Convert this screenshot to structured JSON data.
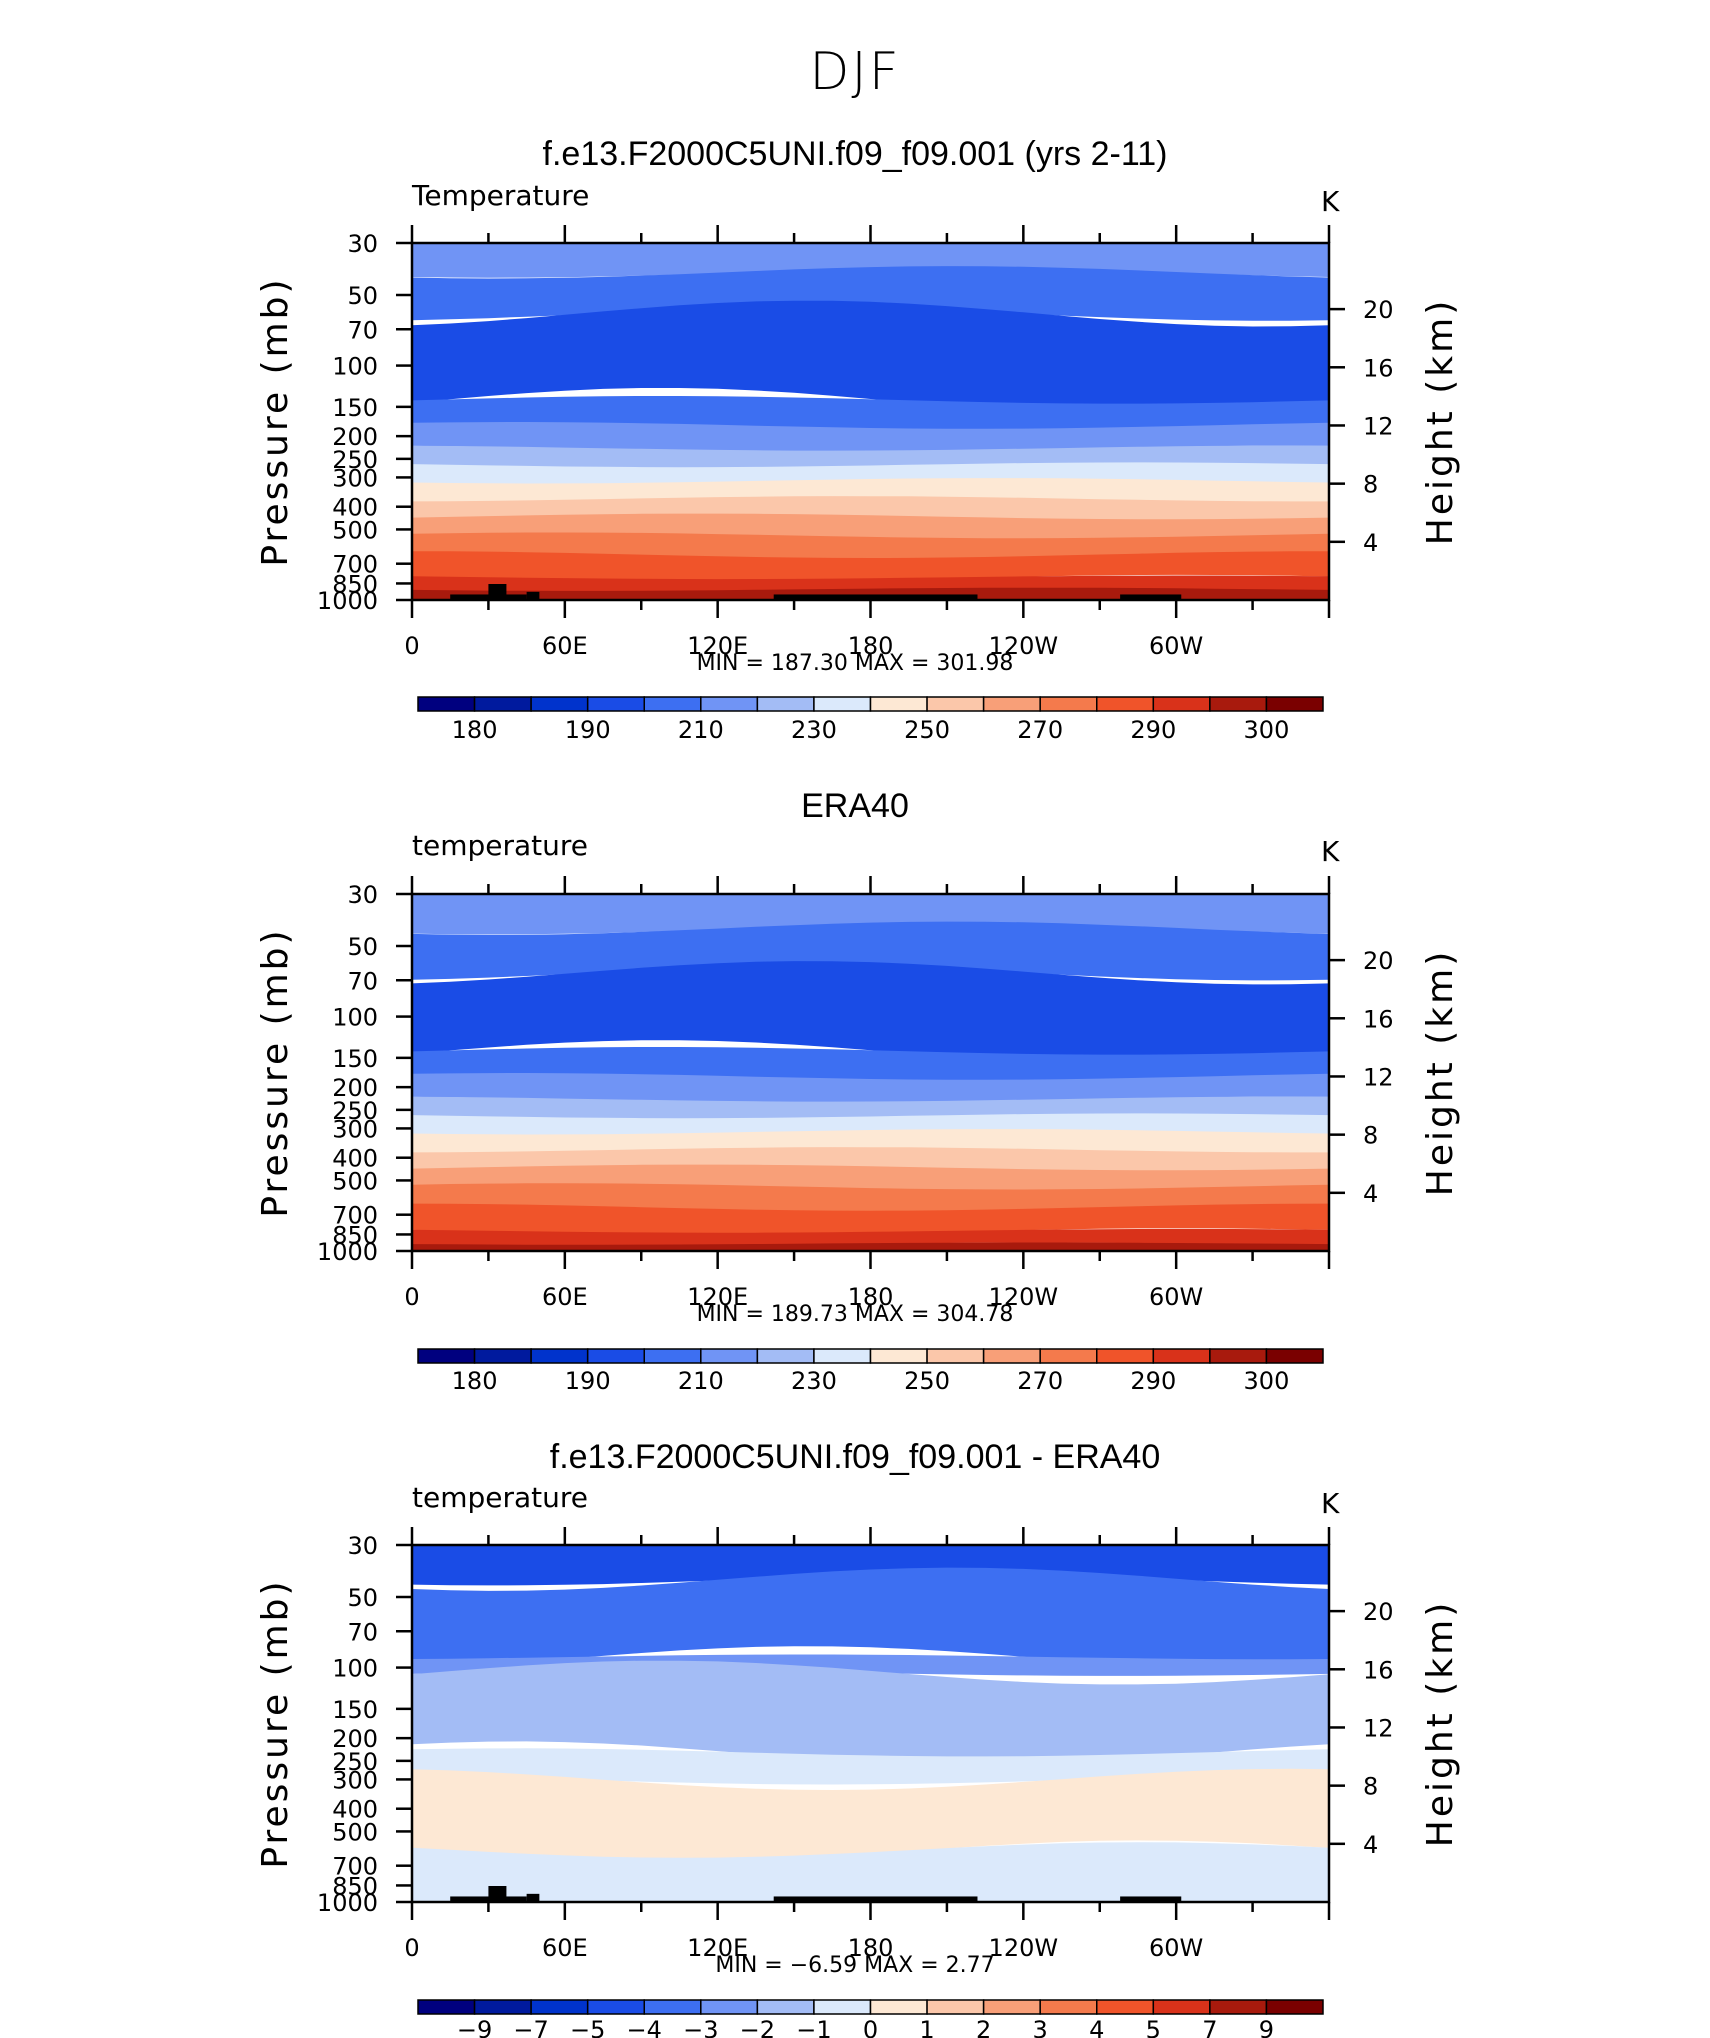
{
  "main_title": "DJF",
  "colors": {
    "temperature_levels": [
      "#00007f",
      "#001a9e",
      "#0033cc",
      "#1a4ce6",
      "#3d6ff2",
      "#7094f5",
      "#a3bcf5",
      "#dbe9fb",
      "#fde8d4",
      "#fbc7aa",
      "#f89f78",
      "#f47a4c",
      "#f0542a",
      "#d9321a",
      "#a81a0d",
      "#7a0000"
    ],
    "difference_levels": [
      "#00007f",
      "#001a9e",
      "#0033cc",
      "#1a4ce6",
      "#3d6ff2",
      "#7094f5",
      "#a3bcf5",
      "#dbe9fb",
      "#fde8d4",
      "#fbc7aa",
      "#f89f78",
      "#f47a4c",
      "#f0542a",
      "#d9321a",
      "#a81a0d",
      "#7a0000"
    ],
    "topography": "#000000"
  },
  "chart_data": [
    {
      "type": "contour",
      "panel_title": "f.e13.F2000C5UNI.f09_f09.001 (yrs 2-11)",
      "variable_label": "Temperature",
      "units": "K",
      "ylabel_left": "Pressure (mb)",
      "ylabel_right": "Height (km)",
      "x_ticks": [
        "0",
        "60E",
        "120E",
        "180",
        "120W",
        "60W"
      ],
      "y_ticks_pressure": [
        30,
        50,
        70,
        100,
        150,
        200,
        250,
        300,
        400,
        500,
        700,
        850,
        1000
      ],
      "y_ticks_height": [
        20,
        16,
        12,
        8,
        4
      ],
      "min_max_text": "MIN  =  187.30   MAX  =  301.98",
      "min": 187.3,
      "max": 301.98,
      "colorbar_labels": [
        "180",
        "190",
        "210",
        "230",
        "250",
        "270",
        "290",
        "300"
      ],
      "bands": [
        {
          "p_top": 30,
          "p_bottom": 40,
          "level": 5
        },
        {
          "p_top": 40,
          "p_bottom": 60,
          "level": 4
        },
        {
          "p_top": 60,
          "p_bottom": 140,
          "level": 3
        },
        {
          "p_top": 140,
          "p_bottom": 180,
          "level": 4
        },
        {
          "p_top": 180,
          "p_bottom": 225,
          "level": 5
        },
        {
          "p_top": 225,
          "p_bottom": 265,
          "level": 6
        },
        {
          "p_top": 265,
          "p_bottom": 310,
          "level": 7
        },
        {
          "p_top": 310,
          "p_bottom": 370,
          "level": 8
        },
        {
          "p_top": 370,
          "p_bottom": 440,
          "level": 9
        },
        {
          "p_top": 440,
          "p_bottom": 530,
          "level": 10
        },
        {
          "p_top": 530,
          "p_bottom": 640,
          "level": 11
        },
        {
          "p_top": 640,
          "p_bottom": 800,
          "level": 12
        },
        {
          "p_top": 800,
          "p_bottom": 900,
          "level": 13
        },
        {
          "p_top": 900,
          "p_bottom": 1000,
          "level": 14
        }
      ]
    },
    {
      "type": "contour",
      "panel_title": "ERA40",
      "variable_label": "temperature",
      "units": "K",
      "ylabel_left": "Pressure (mb)",
      "ylabel_right": "Height (km)",
      "x_ticks": [
        "0",
        "60E",
        "120E",
        "180",
        "120W",
        "60W"
      ],
      "y_ticks_pressure": [
        30,
        50,
        70,
        100,
        150,
        200,
        250,
        300,
        400,
        500,
        700,
        850,
        1000
      ],
      "y_ticks_height": [
        20,
        16,
        12,
        8,
        4
      ],
      "min_max_text": "MIN  =  189.73   MAX  =  304.78",
      "min": 189.73,
      "max": 304.78,
      "colorbar_labels": [
        "180",
        "190",
        "210",
        "230",
        "250",
        "270",
        "290",
        "300"
      ],
      "bands": [
        {
          "p_top": 30,
          "p_bottom": 42,
          "level": 5
        },
        {
          "p_top": 42,
          "p_bottom": 65,
          "level": 4
        },
        {
          "p_top": 65,
          "p_bottom": 140,
          "level": 3
        },
        {
          "p_top": 140,
          "p_bottom": 180,
          "level": 4
        },
        {
          "p_top": 180,
          "p_bottom": 225,
          "level": 5
        },
        {
          "p_top": 225,
          "p_bottom": 265,
          "level": 6
        },
        {
          "p_top": 265,
          "p_bottom": 310,
          "level": 7
        },
        {
          "p_top": 310,
          "p_bottom": 370,
          "level": 8
        },
        {
          "p_top": 370,
          "p_bottom": 440,
          "level": 9
        },
        {
          "p_top": 440,
          "p_bottom": 530,
          "level": 10
        },
        {
          "p_top": 530,
          "p_bottom": 650,
          "level": 11
        },
        {
          "p_top": 650,
          "p_bottom": 820,
          "level": 12
        },
        {
          "p_top": 820,
          "p_bottom": 930,
          "level": 13
        },
        {
          "p_top": 930,
          "p_bottom": 1000,
          "level": 14
        }
      ]
    },
    {
      "type": "contour",
      "panel_title": "f.e13.F2000C5UNI.f09_f09.001 - ERA40",
      "variable_label": "temperature",
      "units": "K",
      "ylabel_left": "Pressure (mb)",
      "ylabel_right": "Height (km)",
      "x_ticks": [
        "0",
        "60E",
        "120E",
        "180",
        "120W",
        "60W"
      ],
      "y_ticks_pressure": [
        30,
        50,
        70,
        100,
        150,
        200,
        250,
        300,
        400,
        500,
        700,
        850,
        1000
      ],
      "y_ticks_height": [
        20,
        16,
        12,
        8,
        4
      ],
      "min_max_text": "MIN  =   −6.59   MAX  =     2.77",
      "min": -6.59,
      "max": 2.77,
      "colorbar_labels": [
        "−9",
        "−7",
        "−5",
        "−4",
        "−3",
        "−2",
        "−1",
        "0",
        "1",
        "2",
        "3",
        "4",
        "5",
        "7",
        "9"
      ],
      "bands": [
        {
          "p_top": 30,
          "p_bottom": 42,
          "level": 3
        },
        {
          "p_top": 42,
          "p_bottom": 90,
          "level": 4
        },
        {
          "p_top": 90,
          "p_bottom": 105,
          "level": 5
        },
        {
          "p_top": 105,
          "p_bottom": 230,
          "level": 6
        },
        {
          "p_top": 230,
          "p_bottom": 300,
          "level": 7
        },
        {
          "p_top": 300,
          "p_bottom": 600,
          "level": 8
        },
        {
          "p_top": 600,
          "p_bottom": 1000,
          "level": 7
        }
      ]
    }
  ]
}
